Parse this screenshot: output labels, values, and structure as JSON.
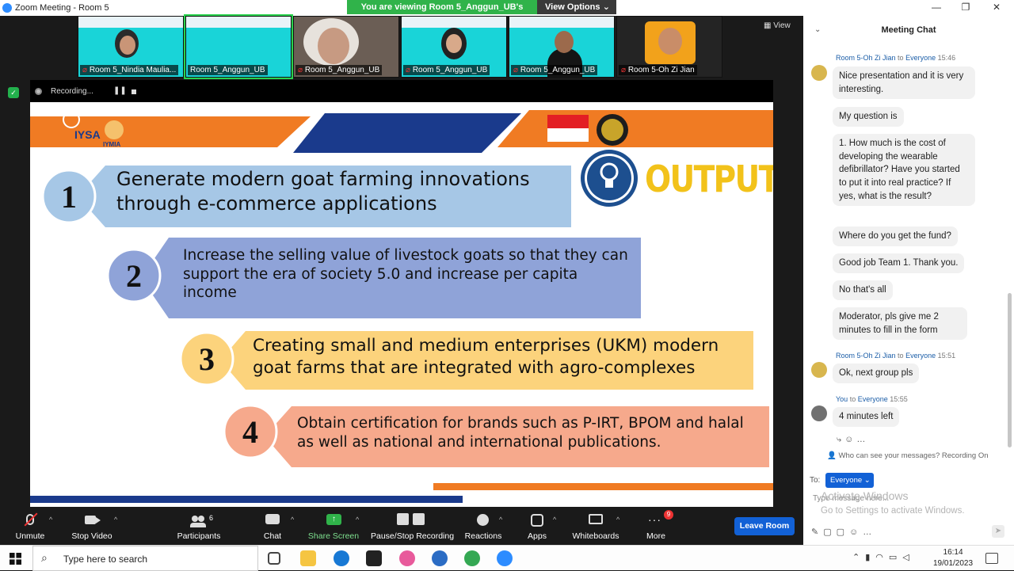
{
  "window": {
    "title": "Zoom Meeting - Room 5",
    "minimize": "—",
    "maximize": "❐",
    "close": "✕"
  },
  "banner": {
    "viewing": "You are viewing Room 5_Anggun_UB's screen",
    "options": "View Options",
    "chevron": "⌄"
  },
  "view_button": "View",
  "participants_strip": [
    {
      "name": "Room 5_Nindia Maulia...",
      "muted": true
    },
    {
      "name": "Room 5_Anggun_UB",
      "muted": false
    },
    {
      "name": "Room 5_Anggun_UB",
      "muted": true
    },
    {
      "name": "Room 5_Anggun_UB",
      "muted": true
    },
    {
      "name": "Room 5_Anggun_UB",
      "muted": true
    },
    {
      "name": "Room 5-Oh Zi Jian",
      "muted": true
    }
  ],
  "recording": {
    "label": "Recording...",
    "pause": "❚❚"
  },
  "slide": {
    "heading": "OUTPUT",
    "logo_text": "IYSA",
    "logo_sub": "IYMIA",
    "items": [
      {
        "number": "1",
        "text": "Generate modern goat farming innovations through e-commerce applications"
      },
      {
        "number": "2",
        "text": "Increase the selling value of livestock goats so that they can support the era of society 5.0 and increase per capita income"
      },
      {
        "number": "3",
        "text": "Creating small and medium enterprises (UKM) modern goat farms that are integrated with agro-complexes"
      },
      {
        "number": "4",
        "text": "Obtain certification for brands such as P-IRT, BPOM and halal as well as national and international publications."
      }
    ]
  },
  "toolbar": {
    "unmute": "Unmute",
    "stop_video": "Stop Video",
    "participants": "Participants",
    "participants_count": "6",
    "chat": "Chat",
    "share_screen": "Share Screen",
    "pause_stop_recording": "Pause/Stop Recording",
    "reactions": "Reactions",
    "apps": "Apps",
    "whiteboards": "Whiteboards",
    "more": "More",
    "more_badge": "9",
    "leave": "Leave Room"
  },
  "chat": {
    "title": "Meeting Chat",
    "messages": [
      {
        "sender": "Room 5-Oh Zi Jian",
        "to": "Everyone",
        "time": "15:46",
        "texts": [
          "Nice presentation and it is very interesting.",
          "My question is",
          "1. How much is the cost of developing the wearable defibrillator? Have you started to put it into real practice? If yes, what is the result?",
          "Where do you get the fund?",
          "Good job Team 1. Thank you.",
          "No that's all",
          "Moderator, pls give me 2 minutes to fill in the form"
        ]
      },
      {
        "sender": "Room 5-Oh Zi Jian",
        "to": "Everyone",
        "time": "15:51",
        "texts": [
          "Ok, next group pls"
        ]
      },
      {
        "sender": "You",
        "to": "Everyone",
        "time": "15:55",
        "texts": [
          "4 minutes left"
        ]
      }
    ],
    "who_can_see": "Who can see your messages? Recording On",
    "to_label": "To:",
    "recipient": "Everyone",
    "placeholder": "Type message here...",
    "activate_title": "Activate Windows",
    "activate_sub": "Go to Settings to activate Windows."
  },
  "taskbar": {
    "search": "Type here to search",
    "time": "16:14",
    "date": "19/01/2023"
  },
  "colors": {
    "accent": "#1261d6",
    "green": "#30b34a",
    "slide_orange": "#f07b23",
    "slide_navy": "#1a3a8c"
  }
}
